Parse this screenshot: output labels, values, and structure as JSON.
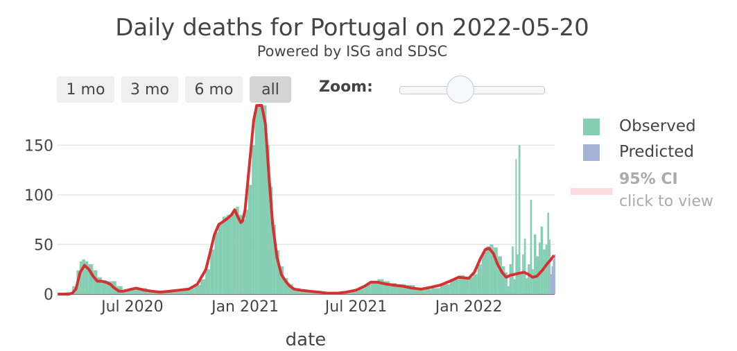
{
  "header": {
    "title": "Daily deaths for Portugal on 2022-05-20",
    "subtitle": "Powered by ISG and SDSC"
  },
  "controls": {
    "range_buttons": [
      "1 mo",
      "3 mo",
      "6 mo",
      "all"
    ],
    "active_range": "all",
    "zoom_label": "Zoom:",
    "zoom_level": 0.38
  },
  "legend": {
    "observed": "Observed",
    "predicted": "Predicted",
    "ci_label": "95% CI",
    "ci_hint": "click to view"
  },
  "colors": {
    "observed": "#85cdb3",
    "predicted": "#a5b2d5",
    "smoothed": "#d73030",
    "ci": "#ffdcdc",
    "grid": "#e6e6e6"
  },
  "chart_data": {
    "type": "bar",
    "title": "Daily deaths for Portugal on 2022-05-20",
    "subtitle": "Powered by ISG and SDSC",
    "xlabel": "date",
    "ylabel": "",
    "ylim": [
      0,
      190
    ],
    "xlim": [
      "2020-03-01",
      "2022-05-21"
    ],
    "yticks": [
      0,
      50,
      100,
      150
    ],
    "xticks": [
      {
        "date": "2020-07-01",
        "label": "Jul 2020"
      },
      {
        "date": "2021-01-01",
        "label": "Jan 2021"
      },
      {
        "date": "2021-07-01",
        "label": "Jul 2021"
      },
      {
        "date": "2022-01-01",
        "label": "Jan 2022"
      }
    ],
    "grid": true,
    "legend_position": "right",
    "series": [
      {
        "name": "Observed",
        "kind": "bars",
        "points": [
          [
            "2020-03-01",
            0
          ],
          [
            "2020-03-15",
            2
          ],
          [
            "2020-03-25",
            8
          ],
          [
            "2020-04-01",
            24
          ],
          [
            "2020-04-06",
            33
          ],
          [
            "2020-04-10",
            35
          ],
          [
            "2020-04-15",
            33
          ],
          [
            "2020-04-20",
            30
          ],
          [
            "2020-04-28",
            24
          ],
          [
            "2020-05-05",
            17
          ],
          [
            "2020-05-12",
            14
          ],
          [
            "2020-05-20",
            13
          ],
          [
            "2020-05-28",
            13
          ],
          [
            "2020-06-05",
            8
          ],
          [
            "2020-06-15",
            3
          ],
          [
            "2020-06-25",
            4
          ],
          [
            "2020-07-05",
            6
          ],
          [
            "2020-07-15",
            6
          ],
          [
            "2020-07-25",
            4
          ],
          [
            "2020-08-05",
            3
          ],
          [
            "2020-08-20",
            2
          ],
          [
            "2020-09-05",
            3
          ],
          [
            "2020-09-20",
            4
          ],
          [
            "2020-10-01",
            6
          ],
          [
            "2020-10-10",
            9
          ],
          [
            "2020-10-20",
            15
          ],
          [
            "2020-10-28",
            25
          ],
          [
            "2020-11-05",
            45
          ],
          [
            "2020-11-12",
            62
          ],
          [
            "2020-11-18",
            72
          ],
          [
            "2020-11-25",
            78
          ],
          [
            "2020-12-02",
            80
          ],
          [
            "2020-12-10",
            82
          ],
          [
            "2020-12-17",
            88
          ],
          [
            "2020-12-22",
            80
          ],
          [
            "2020-12-27",
            75
          ],
          [
            "2021-01-01",
            85
          ],
          [
            "2021-01-06",
            110
          ],
          [
            "2021-01-12",
            150
          ],
          [
            "2021-01-17",
            190
          ],
          [
            "2021-01-22",
            200
          ],
          [
            "2021-01-27",
            200
          ],
          [
            "2021-02-01",
            190
          ],
          [
            "2021-02-05",
            150
          ],
          [
            "2021-02-10",
            108
          ],
          [
            "2021-02-15",
            70
          ],
          [
            "2021-02-20",
            44
          ],
          [
            "2021-02-26",
            28
          ],
          [
            "2021-03-05",
            16
          ],
          [
            "2021-03-12",
            10
          ],
          [
            "2021-03-20",
            6
          ],
          [
            "2021-04-01",
            4
          ],
          [
            "2021-04-15",
            3
          ],
          [
            "2021-05-01",
            2
          ],
          [
            "2021-06-01",
            2
          ],
          [
            "2021-06-20",
            3
          ],
          [
            "2021-07-05",
            6
          ],
          [
            "2021-07-15",
            10
          ],
          [
            "2021-07-25",
            13
          ],
          [
            "2021-08-05",
            15
          ],
          [
            "2021-08-15",
            13
          ],
          [
            "2021-08-25",
            11
          ],
          [
            "2021-09-05",
            10
          ],
          [
            "2021-09-20",
            9
          ],
          [
            "2021-10-05",
            6
          ],
          [
            "2021-10-20",
            5
          ],
          [
            "2021-11-01",
            6
          ],
          [
            "2021-11-15",
            10
          ],
          [
            "2021-12-01",
            15
          ],
          [
            "2021-12-15",
            19
          ],
          [
            "2021-12-25",
            17
          ],
          [
            "2022-01-01",
            17
          ],
          [
            "2022-01-08",
            20
          ],
          [
            "2022-01-15",
            30
          ],
          [
            "2022-01-22",
            42
          ],
          [
            "2022-01-29",
            48
          ],
          [
            "2022-02-04",
            50
          ],
          [
            "2022-02-10",
            47
          ],
          [
            "2022-02-17",
            38
          ],
          [
            "2022-02-24",
            28
          ],
          [
            "2022-03-01",
            22
          ],
          [
            "2022-03-05",
            8
          ],
          [
            "2022-03-08",
            30
          ],
          [
            "2022-03-12",
            48
          ],
          [
            "2022-03-15",
            15
          ],
          [
            "2022-03-18",
            136
          ],
          [
            "2022-03-20",
            40
          ],
          [
            "2022-03-23",
            150
          ],
          [
            "2022-03-26",
            20
          ],
          [
            "2022-03-29",
            40
          ],
          [
            "2022-04-01",
            56
          ],
          [
            "2022-04-04",
            16
          ],
          [
            "2022-04-07",
            30
          ],
          [
            "2022-04-11",
            95
          ],
          [
            "2022-04-14",
            25
          ],
          [
            "2022-04-17",
            60
          ],
          [
            "2022-04-21",
            38
          ],
          [
            "2022-04-25",
            52
          ],
          [
            "2022-04-28",
            68
          ],
          [
            "2022-05-02",
            45
          ],
          [
            "2022-05-06",
            50
          ],
          [
            "2022-05-09",
            82
          ],
          [
            "2022-05-12",
            55
          ]
        ]
      },
      {
        "name": "Predicted",
        "kind": "bars",
        "points": [
          [
            "2022-05-14",
            20
          ],
          [
            "2022-05-16",
            28
          ],
          [
            "2022-05-18",
            35
          ],
          [
            "2022-05-20",
            40
          ]
        ]
      },
      {
        "name": "smoothed",
        "kind": "line",
        "points": [
          [
            "2020-03-01",
            0
          ],
          [
            "2020-03-20",
            0
          ],
          [
            "2020-03-25",
            1
          ],
          [
            "2020-03-31",
            5
          ],
          [
            "2020-04-07",
            22
          ],
          [
            "2020-04-14",
            29
          ],
          [
            "2020-04-21",
            25
          ],
          [
            "2020-04-28",
            18
          ],
          [
            "2020-05-05",
            13
          ],
          [
            "2020-05-12",
            13
          ],
          [
            "2020-05-19",
            12
          ],
          [
            "2020-05-26",
            10
          ],
          [
            "2020-06-02",
            6
          ],
          [
            "2020-06-09",
            3
          ],
          [
            "2020-06-16",
            3
          ],
          [
            "2020-06-23",
            4
          ],
          [
            "2020-06-30",
            5
          ],
          [
            "2020-07-07",
            6
          ],
          [
            "2020-07-14",
            5
          ],
          [
            "2020-07-21",
            4
          ],
          [
            "2020-08-01",
            3
          ],
          [
            "2020-08-15",
            2
          ],
          [
            "2020-09-01",
            3
          ],
          [
            "2020-09-15",
            4
          ],
          [
            "2020-10-01",
            5
          ],
          [
            "2020-10-15",
            10
          ],
          [
            "2020-10-29",
            25
          ],
          [
            "2020-11-05",
            42
          ],
          [
            "2020-11-12",
            60
          ],
          [
            "2020-11-19",
            70
          ],
          [
            "2020-11-26",
            73
          ],
          [
            "2020-12-03",
            76
          ],
          [
            "2020-12-10",
            80
          ],
          [
            "2020-12-15",
            85
          ],
          [
            "2020-12-20",
            78
          ],
          [
            "2020-12-25",
            72
          ],
          [
            "2020-12-28",
            74
          ],
          [
            "2021-01-01",
            85
          ],
          [
            "2021-01-08",
            130
          ],
          [
            "2021-01-15",
            175
          ],
          [
            "2021-01-20",
            200
          ],
          [
            "2021-01-28",
            200
          ],
          [
            "2021-02-03",
            172
          ],
          [
            "2021-02-09",
            118
          ],
          [
            "2021-02-15",
            70
          ],
          [
            "2021-02-22",
            37
          ],
          [
            "2021-03-01",
            20
          ],
          [
            "2021-03-08",
            13
          ],
          [
            "2021-03-15",
            8
          ],
          [
            "2021-03-22",
            5
          ],
          [
            "2021-04-01",
            4
          ],
          [
            "2021-04-15",
            3
          ],
          [
            "2021-05-01",
            2
          ],
          [
            "2021-05-15",
            1
          ],
          [
            "2021-06-01",
            1
          ],
          [
            "2021-06-15",
            2
          ],
          [
            "2021-07-01",
            4
          ],
          [
            "2021-07-15",
            8
          ],
          [
            "2021-07-25",
            12
          ],
          [
            "2021-08-05",
            12
          ],
          [
            "2021-08-20",
            10
          ],
          [
            "2021-09-01",
            9
          ],
          [
            "2021-09-15",
            8
          ],
          [
            "2021-10-01",
            6
          ],
          [
            "2021-10-15",
            5
          ],
          [
            "2021-11-01",
            7
          ],
          [
            "2021-11-15",
            9
          ],
          [
            "2021-12-01",
            13
          ],
          [
            "2021-12-15",
            17
          ],
          [
            "2022-01-01",
            16
          ],
          [
            "2022-01-10",
            22
          ],
          [
            "2022-01-20",
            36
          ],
          [
            "2022-01-28",
            45
          ],
          [
            "2022-02-03",
            46
          ],
          [
            "2022-02-10",
            41
          ],
          [
            "2022-02-17",
            30
          ],
          [
            "2022-02-24",
            22
          ],
          [
            "2022-03-03",
            17
          ],
          [
            "2022-03-10",
            19
          ],
          [
            "2022-03-17",
            20
          ],
          [
            "2022-03-24",
            21
          ],
          [
            "2022-04-01",
            22
          ],
          [
            "2022-04-08",
            20
          ],
          [
            "2022-04-15",
            17
          ],
          [
            "2022-04-22",
            18
          ],
          [
            "2022-05-01",
            24
          ],
          [
            "2022-05-08",
            30
          ],
          [
            "2022-05-15",
            35
          ],
          [
            "2022-05-20",
            39
          ]
        ]
      }
    ]
  }
}
